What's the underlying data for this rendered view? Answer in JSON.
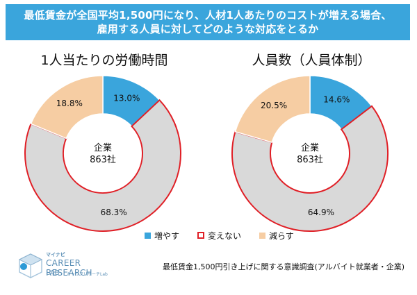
{
  "title": {
    "line1": "最低賃金が全国平均1,500円になり、人材1人あたりのコストが増える場合、",
    "line2": "雇用する人員に対してどのような対応をとるか"
  },
  "colors": {
    "banner": "#3aa5dc",
    "increase": "#3aa5dc",
    "nochange": "#e01f26",
    "nochange_fill": "#d9d9d9",
    "decrease": "#f6cda3"
  },
  "chart_data": [
    {
      "type": "pie",
      "title": "1人当たりの労働時間",
      "center_label": [
        "企業",
        "863社"
      ],
      "categories": [
        "増やす",
        "変えない",
        "減らす"
      ],
      "values": [
        13.0,
        68.3,
        18.8
      ],
      "value_labels": [
        "13.0%",
        "68.3%",
        "18.8%"
      ]
    },
    {
      "type": "pie",
      "title": "人員数（人員体制）",
      "center_label": [
        "企業",
        "863社"
      ],
      "categories": [
        "増やす",
        "変えない",
        "減らす"
      ],
      "values": [
        14.6,
        64.9,
        20.5
      ],
      "value_labels": [
        "14.6%",
        "64.9%",
        "20.5%"
      ]
    }
  ],
  "legend": [
    "増やす",
    "変えない",
    "減らす"
  ],
  "logo": {
    "top": "マイナビ",
    "main": "CAREER RESEARCH",
    "lab": "LAB",
    "sub": "キャリアリサーチLab"
  },
  "footnote": "最低賃金1,500円引き上げに関する意識調査(アルバイト就業者・企業)"
}
